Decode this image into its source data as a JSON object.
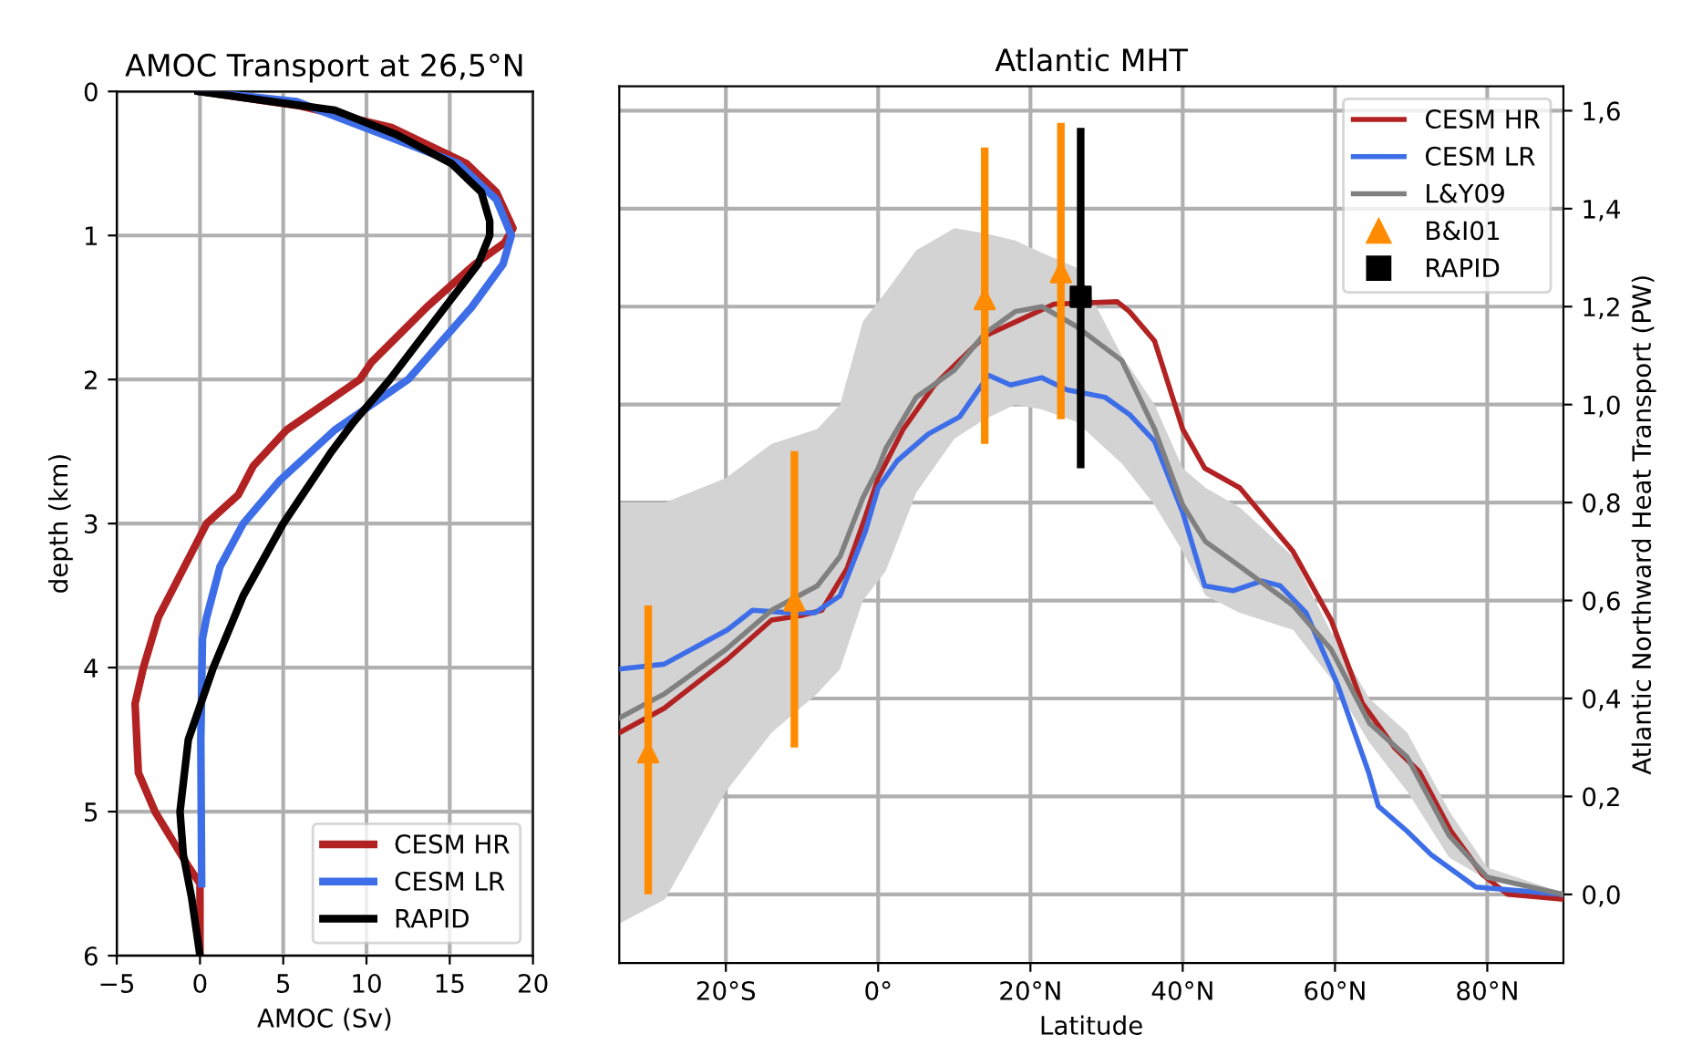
{
  "chart_data": [
    {
      "type": "line",
      "title": "AMOC Transport at 26,5°N",
      "xlabel": "AMOC (Sv)",
      "ylabel": "depth (km)",
      "xlim": [
        -5,
        20
      ],
      "xticks": [
        {
          "value": -5,
          "label": "−5"
        },
        0,
        5,
        10,
        15,
        20
      ],
      "ylim": [
        6,
        0
      ],
      "yticks": [
        0,
        1,
        2,
        3,
        4,
        5,
        6
      ],
      "grid": true,
      "legend": "bottom right",
      "series": [
        {
          "name": "CESM HR",
          "color": "#b22222",
          "x": [
            0,
            6,
            11.5,
            16,
            17.8,
            18.8,
            18.3,
            16.5,
            13.6,
            10.3,
            9.6,
            5.2,
            3.2,
            2.3,
            0.4,
            -2.5,
            -3.4,
            -3.9,
            -3.7,
            -2.7,
            -0.7,
            0,
            0
          ],
          "values": [
            0,
            0.1,
            0.25,
            0.5,
            0.7,
            0.95,
            1.05,
            1.2,
            1.5,
            1.88,
            2.0,
            2.35,
            2.6,
            2.8,
            3.0,
            3.65,
            4.0,
            4.25,
            4.73,
            5.0,
            5.38,
            5.5,
            6.0
          ]
        },
        {
          "name": "CESM LR",
          "color": "#3d6ee8",
          "x": [
            0,
            5.8,
            11,
            15.5,
            17.8,
            18.7,
            18.2,
            16.3,
            12.5,
            8.1,
            4.8,
            2.6,
            1.2,
            0.4,
            0.15,
            0.05,
            0.1
          ],
          "values": [
            0,
            0.07,
            0.3,
            0.5,
            0.75,
            1.0,
            1.2,
            1.5,
            2.0,
            2.35,
            2.7,
            3.0,
            3.3,
            3.65,
            3.8,
            4.5,
            5.5
          ]
        },
        {
          "name": "RAPID",
          "color": "#000000",
          "x": [
            -0.1,
            8.1,
            11.8,
            15.1,
            16.9,
            17.4,
            17.4,
            16.7,
            14.7,
            11.4,
            9.2,
            7.9,
            5.0,
            2.6,
            0.8,
            -0.7,
            -1.2,
            -1.0,
            -0.5,
            0
          ],
          "values": [
            0,
            0.13,
            0.3,
            0.5,
            0.7,
            0.9,
            1.0,
            1.2,
            1.5,
            2.0,
            2.3,
            2.5,
            3.0,
            3.5,
            4.0,
            4.5,
            5.0,
            5.3,
            5.6,
            6.0
          ]
        }
      ]
    },
    {
      "type": "line",
      "title": "Atlantic MHT",
      "xlabel": "Latitude",
      "ylabel": "Atlantic Northward Heat Transport (PW)",
      "xlim": [
        -34,
        90
      ],
      "xticks": [
        {
          "value": -20,
          "label": "20°S"
        },
        {
          "value": 0,
          "label": "0°"
        },
        {
          "value": 20,
          "label": "20°N"
        },
        {
          "value": 40,
          "label": "40°N"
        },
        {
          "value": 60,
          "label": "60°N"
        },
        {
          "value": 80,
          "label": "80°N"
        }
      ],
      "ylim": [
        -0.14,
        1.65
      ],
      "yticks": [
        {
          "value": 0,
          "label": "0,0"
        },
        {
          "value": 0.2,
          "label": "0,2"
        },
        {
          "value": 0.4,
          "label": "0,4"
        },
        {
          "value": 0.6,
          "label": "0,6"
        },
        {
          "value": 0.8,
          "label": "0,8"
        },
        {
          "value": 1.0,
          "label": "1,0"
        },
        {
          "value": 1.2,
          "label": "1,2"
        },
        {
          "value": 1.4,
          "label": "1,4"
        },
        {
          "value": 1.6,
          "label": "1,6"
        }
      ],
      "grid": true,
      "legend": "top right",
      "series": [
        {
          "name": "CESM HR",
          "color": "#b22222",
          "x": [
            -34,
            -28.1,
            -19.8,
            -14,
            -9.9,
            -7.4,
            -4.1,
            -1.7,
            0,
            3.3,
            7.4,
            10.7,
            14,
            18.2,
            23.1,
            31.4,
            33,
            36.3,
            40,
            42.9,
            47.5,
            54.5,
            59.5,
            63.6,
            67.8,
            71.1,
            75.2,
            79.4,
            82.7,
            90
          ],
          "values": [
            0.33,
            0.38,
            0.48,
            0.56,
            0.57,
            0.58,
            0.665,
            0.77,
            0.85,
            0.95,
            1.04,
            1.09,
            1.14,
            1.17,
            1.205,
            1.21,
            1.19,
            1.13,
            0.95,
            0.87,
            0.83,
            0.7,
            0.56,
            0.39,
            0.3,
            0.25,
            0.13,
            0.04,
            0.0,
            -0.01
          ]
        },
        {
          "name": "CESM LR",
          "color": "#3d6ee8",
          "x": [
            -34,
            -28.1,
            -19.8,
            -16.5,
            -11.6,
            -8.3,
            -5,
            -1.7,
            0,
            2.5,
            6.6,
            10.7,
            14.5,
            17.4,
            21.5,
            24.8,
            29.8,
            33,
            36.3,
            40,
            42.9,
            46.6,
            50.4,
            52.8,
            56.2,
            60.3,
            64.4,
            65.7,
            69.4,
            72.7,
            78.5,
            90
          ],
          "values": [
            0.46,
            0.47,
            0.54,
            0.58,
            0.575,
            0.575,
            0.61,
            0.74,
            0.83,
            0.885,
            0.94,
            0.975,
            1.06,
            1.04,
            1.055,
            1.03,
            1.015,
            0.98,
            0.925,
            0.78,
            0.63,
            0.62,
            0.64,
            0.63,
            0.575,
            0.43,
            0.25,
            0.18,
            0.13,
            0.08,
            0.015,
            0.0
          ]
        },
        {
          "name": "L&Y09",
          "color": "#808080",
          "x": [
            -34,
            -28,
            -20,
            -14,
            -8,
            -5,
            -2,
            0,
            1,
            5,
            10,
            14,
            18,
            21.5,
            26,
            32,
            36.3,
            40,
            43,
            47.5,
            54.5,
            59.5,
            64.5,
            69.5,
            75,
            80,
            90
          ],
          "values": [
            0.36,
            0.41,
            0.5,
            0.58,
            0.63,
            0.69,
            0.81,
            0.87,
            0.91,
            1.015,
            1.07,
            1.145,
            1.19,
            1.2,
            1.16,
            1.09,
            0.95,
            0.795,
            0.72,
            0.67,
            0.59,
            0.5,
            0.35,
            0.28,
            0.12,
            0.035,
            0.0
          ],
          "lower": [
            -0.06,
            -0.01,
            0.21,
            0.33,
            0.41,
            0.46,
            0.6,
            0.64,
            0.66,
            0.82,
            0.93,
            0.97,
            1.0,
            0.99,
            0.965,
            0.88,
            0.795,
            0.7,
            0.61,
            0.575,
            0.54,
            0.44,
            0.31,
            0.21,
            0.075,
            0.03,
            0.0
          ],
          "upper": [
            0.8,
            0.8,
            0.85,
            0.92,
            0.95,
            1.0,
            1.17,
            1.21,
            1.23,
            1.315,
            1.36,
            1.35,
            1.335,
            1.31,
            1.28,
            1.1,
            1.0,
            0.87,
            0.83,
            0.79,
            0.69,
            0.535,
            0.4,
            0.33,
            0.17,
            0.055,
            0.003
          ]
        },
        {
          "name": "B&I01",
          "type": "scatter",
          "marker": "triangle",
          "color": "#ff8c00",
          "x": [
            -30.2,
            -11,
            14,
            24
          ],
          "values": [
            0.29,
            0.6,
            1.215,
            1.27
          ],
          "errors": [
            [
              0.0,
              0.59
            ],
            [
              0.3,
              0.905
            ],
            [
              0.92,
              1.525
            ],
            [
              0.97,
              1.575
            ]
          ]
        },
        {
          "name": "RAPID",
          "type": "scatter",
          "marker": "square",
          "color": "#000000",
          "x": [
            26.6
          ],
          "values": [
            1.22
          ],
          "errors": [
            [
              0.87,
              1.565
            ]
          ]
        }
      ]
    }
  ]
}
